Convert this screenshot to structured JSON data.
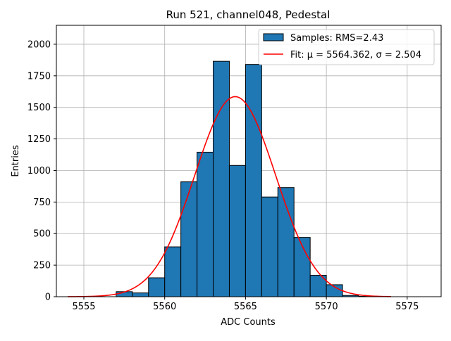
{
  "chart_data": {
    "type": "bar",
    "title": "Run 521, channel048, Pedestal",
    "xlabel": "ADC Counts",
    "ylabel": "Entries",
    "xlim": [
      5553.3,
      5577.1
    ],
    "ylim": [
      0,
      2150
    ],
    "xticks": [
      5555,
      5560,
      5565,
      5570,
      5575
    ],
    "yticks": [
      0,
      250,
      500,
      750,
      1000,
      1250,
      1500,
      1750,
      2000
    ],
    "grid": true,
    "legend_position": "top-right",
    "bin_width": 1,
    "histogram": {
      "name": "Samples: RMS=2.43",
      "color": "#1f77b4",
      "edgecolor": "#000000",
      "bins": [
        {
          "x0": 5557,
          "value": 40
        },
        {
          "x0": 5558,
          "value": 30
        },
        {
          "x0": 5559,
          "value": 150
        },
        {
          "x0": 5560,
          "value": 395
        },
        {
          "x0": 5561,
          "value": 910
        },
        {
          "x0": 5562,
          "value": 1145
        },
        {
          "x0": 5563,
          "value": 1865
        },
        {
          "x0": 5564,
          "value": 1040
        },
        {
          "x0": 5565,
          "value": 1840
        },
        {
          "x0": 5566,
          "value": 790
        },
        {
          "x0": 5567,
          "value": 865
        },
        {
          "x0": 5568,
          "value": 470
        },
        {
          "x0": 5569,
          "value": 170
        },
        {
          "x0": 5570,
          "value": 95
        },
        {
          "x0": 5571,
          "value": 10
        },
        {
          "x0": 5572,
          "value": 3
        }
      ]
    },
    "fit": {
      "name": "Fit: μ = 5564.362, σ = 2.504",
      "color": "#ff0000",
      "mu": 5564.362,
      "sigma": 2.504,
      "amplitude": 1585,
      "x_range": [
        5554,
        5574
      ]
    }
  }
}
